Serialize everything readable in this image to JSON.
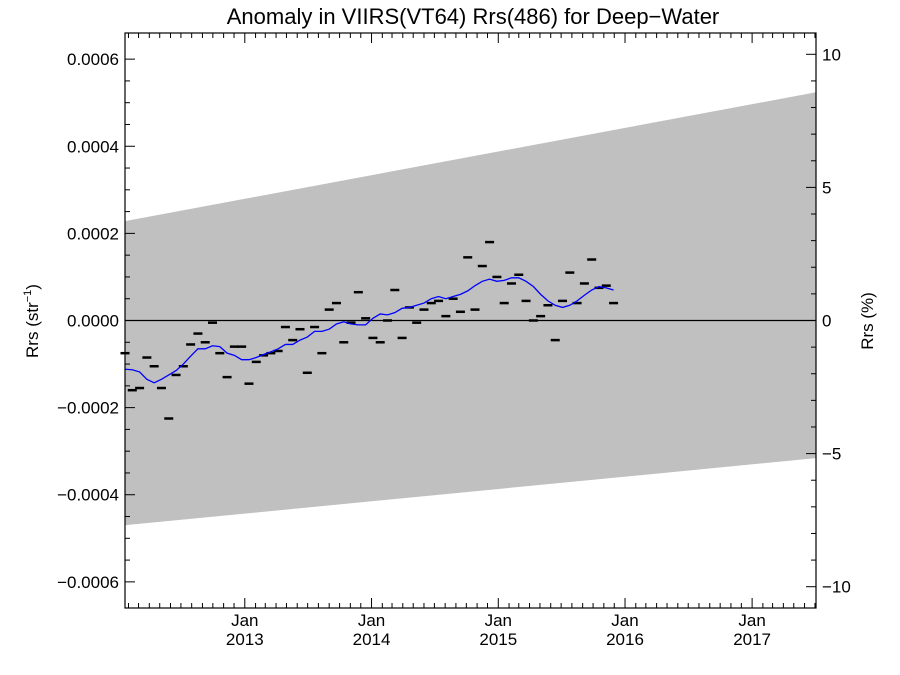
{
  "chart_data": {
    "type": "line",
    "title": "Anomaly in VIIRS(VT64) Rrs(486) for Deep−Water",
    "ylabel_left": "Rrs (str",
    "ylabel_left_sup": "−1",
    "ylabel_left_close": ")",
    "ylabel_right": "Rrs (%)",
    "xlim": [
      "2012-01-22",
      "2017-07-04"
    ],
    "ylim_left": [
      -0.00066,
      0.00066
    ],
    "ylim_right": [
      -10.8,
      10.8
    ],
    "x_ticks": [
      {
        "date": "2013-01-01",
        "month": "Jan",
        "year": "2013"
      },
      {
        "date": "2014-01-01",
        "month": "Jan",
        "year": "2014"
      },
      {
        "date": "2015-01-01",
        "month": "Jan",
        "year": "2015"
      },
      {
        "date": "2016-01-01",
        "month": "Jan",
        "year": "2016"
      },
      {
        "date": "2017-01-01",
        "month": "Jan",
        "year": "2017"
      }
    ],
    "y_ticks_left": [
      {
        "value": 0.0006,
        "label": "0.0006"
      },
      {
        "value": 0.0004,
        "label": "0.0004"
      },
      {
        "value": 0.0002,
        "label": "0.0002"
      },
      {
        "value": 0.0,
        "label": "0.0000"
      },
      {
        "value": -0.0002,
        "label": "−0.0002"
      },
      {
        "value": -0.0004,
        "label": "−0.0004"
      },
      {
        "value": -0.0006,
        "label": "−0.0006"
      }
    ],
    "y_ticks_right": [
      {
        "value": 10,
        "label": "10"
      },
      {
        "value": 5,
        "label": "5"
      },
      {
        "value": 0,
        "label": "0"
      },
      {
        "value": -5,
        "label": "−5"
      },
      {
        "value": -10,
        "label": "−10"
      }
    ],
    "band": {
      "color": "#c0c0c0",
      "upper": [
        [
          "2012-01-22",
          0.000228
        ],
        [
          "2017-07-04",
          0.000524
        ]
      ],
      "lower": [
        [
          "2012-01-22",
          -0.00047
        ],
        [
          "2017-07-04",
          -0.000316
        ]
      ]
    },
    "zero_line": {
      "value": 0.0,
      "color": "#000000"
    },
    "series": [
      {
        "style": "dash",
        "color": "#000000",
        "points": [
          [
            "2012-01-22",
            -7.5e-05
          ],
          [
            "2012-02-12",
            -0.00016
          ],
          [
            "2012-03-04",
            -0.000155
          ],
          [
            "2012-03-25",
            -8.5e-05
          ],
          [
            "2012-04-15",
            -0.000105
          ],
          [
            "2012-05-06",
            -0.000155
          ],
          [
            "2012-05-27",
            -0.000225
          ],
          [
            "2012-06-17",
            -0.000125
          ],
          [
            "2012-07-08",
            -0.000105
          ],
          [
            "2012-07-29",
            -5.5e-05
          ],
          [
            "2012-08-19",
            -3e-05
          ],
          [
            "2012-09-09",
            -5e-05
          ],
          [
            "2012-09-30",
            -5e-06
          ],
          [
            "2012-10-21",
            -7.5e-05
          ],
          [
            "2012-11-11",
            -0.00013
          ],
          [
            "2012-12-02",
            -6e-05
          ],
          [
            "2012-12-23",
            -6e-05
          ],
          [
            "2013-01-13",
            -0.000145
          ],
          [
            "2013-02-03",
            -9.5e-05
          ],
          [
            "2013-02-24",
            -8e-05
          ],
          [
            "2013-03-17",
            -7.5e-05
          ],
          [
            "2013-04-07",
            -7e-05
          ],
          [
            "2013-04-28",
            -1.5e-05
          ],
          [
            "2013-05-19",
            -4.5e-05
          ],
          [
            "2013-06-09",
            -2e-05
          ],
          [
            "2013-06-30",
            -0.00012
          ],
          [
            "2013-07-21",
            -1.5e-05
          ],
          [
            "2013-08-11",
            -7.5e-05
          ],
          [
            "2013-09-01",
            2.5e-05
          ],
          [
            "2013-09-22",
            4e-05
          ],
          [
            "2013-10-13",
            -5e-05
          ],
          [
            "2013-11-03",
            -5e-06
          ],
          [
            "2013-11-24",
            6.5e-05
          ],
          [
            "2013-12-15",
            5e-06
          ],
          [
            "2014-01-05",
            -4e-05
          ],
          [
            "2014-01-26",
            -5e-05
          ],
          [
            "2014-02-16",
            0.0
          ],
          [
            "2014-03-09",
            7e-05
          ],
          [
            "2014-03-30",
            -4e-05
          ],
          [
            "2014-04-20",
            3e-05
          ],
          [
            "2014-05-11",
            -5e-06
          ],
          [
            "2014-06-01",
            2.5e-05
          ],
          [
            "2014-06-22",
            4e-05
          ],
          [
            "2014-07-13",
            4.5e-05
          ],
          [
            "2014-08-03",
            1e-05
          ],
          [
            "2014-08-24",
            5e-05
          ],
          [
            "2014-09-14",
            2e-05
          ],
          [
            "2014-10-05",
            0.000145
          ],
          [
            "2014-10-26",
            2.5e-05
          ],
          [
            "2014-11-16",
            0.000125
          ],
          [
            "2014-12-07",
            0.00018
          ],
          [
            "2014-12-28",
            0.0001
          ],
          [
            "2015-01-18",
            4e-05
          ],
          [
            "2015-02-08",
            8.5e-05
          ],
          [
            "2015-03-01",
            0.000105
          ],
          [
            "2015-03-22",
            4.5e-05
          ],
          [
            "2015-04-12",
            0.0
          ],
          [
            "2015-05-03",
            1e-05
          ],
          [
            "2015-05-24",
            3.5e-05
          ],
          [
            "2015-06-14",
            -4.5e-05
          ],
          [
            "2015-07-05",
            4.5e-05
          ],
          [
            "2015-07-26",
            0.00011
          ],
          [
            "2015-08-16",
            4e-05
          ],
          [
            "2015-09-06",
            8.5e-05
          ],
          [
            "2015-09-27",
            0.00014
          ],
          [
            "2015-10-18",
            7.5e-05
          ],
          [
            "2015-11-08",
            8e-05
          ],
          [
            "2015-11-29",
            4e-05
          ]
        ]
      },
      {
        "style": "line",
        "color": "#0000ff",
        "points": [
          [
            "2012-01-22",
            -0.000112
          ],
          [
            "2012-02-12",
            -0.000113
          ],
          [
            "2012-03-04",
            -0.000118
          ],
          [
            "2012-03-25",
            -0.000135
          ],
          [
            "2012-04-15",
            -0.000143
          ],
          [
            "2012-05-06",
            -0.000135
          ],
          [
            "2012-05-27",
            -0.000125
          ],
          [
            "2012-06-17",
            -0.000115
          ],
          [
            "2012-07-08",
            -0.0001
          ],
          [
            "2012-07-29",
            -8.2e-05
          ],
          [
            "2012-08-19",
            -6.5e-05
          ],
          [
            "2012-09-09",
            -6.5e-05
          ],
          [
            "2012-09-30",
            -5.8e-05
          ],
          [
            "2012-10-21",
            -6e-05
          ],
          [
            "2012-11-11",
            -7.5e-05
          ],
          [
            "2012-12-02",
            -8e-05
          ],
          [
            "2012-12-23",
            -9e-05
          ],
          [
            "2013-01-13",
            -9e-05
          ],
          [
            "2013-02-03",
            -8.5e-05
          ],
          [
            "2013-02-24",
            -7.8e-05
          ],
          [
            "2013-03-17",
            -7.2e-05
          ],
          [
            "2013-04-07",
            -6.5e-05
          ],
          [
            "2013-04-28",
            -5.5e-05
          ],
          [
            "2013-05-19",
            -5.5e-05
          ],
          [
            "2013-06-09",
            -4.5e-05
          ],
          [
            "2013-06-30",
            -3.8e-05
          ],
          [
            "2013-07-21",
            -2.5e-05
          ],
          [
            "2013-08-11",
            -2.5e-05
          ],
          [
            "2013-09-01",
            -2e-05
          ],
          [
            "2013-09-22",
            -8e-06
          ],
          [
            "2013-10-13",
            -3e-06
          ],
          [
            "2013-11-03",
            -8e-06
          ],
          [
            "2013-11-24",
            -1e-05
          ],
          [
            "2013-12-15",
            -1e-05
          ],
          [
            "2014-01-05",
            5e-06
          ],
          [
            "2014-01-26",
            1.5e-05
          ],
          [
            "2014-02-16",
            1.3e-05
          ],
          [
            "2014-03-09",
            1.8e-05
          ],
          [
            "2014-03-30",
            2.8e-05
          ],
          [
            "2014-04-20",
            3e-05
          ],
          [
            "2014-05-11",
            3.5e-05
          ],
          [
            "2014-06-01",
            4e-05
          ],
          [
            "2014-06-22",
            5e-05
          ],
          [
            "2014-07-13",
            5.5e-05
          ],
          [
            "2014-08-03",
            5e-05
          ],
          [
            "2014-08-24",
            5.5e-05
          ],
          [
            "2014-09-14",
            6e-05
          ],
          [
            "2014-10-05",
            6.8e-05
          ],
          [
            "2014-10-26",
            8e-05
          ],
          [
            "2014-11-16",
            9e-05
          ],
          [
            "2014-12-07",
            9.5e-05
          ],
          [
            "2014-12-28",
            9e-05
          ],
          [
            "2015-01-18",
            9.2e-05
          ],
          [
            "2015-02-08",
            9.8e-05
          ],
          [
            "2015-03-01",
            9.8e-05
          ],
          [
            "2015-03-22",
            9e-05
          ],
          [
            "2015-04-12",
            7.8e-05
          ],
          [
            "2015-05-03",
            6e-05
          ],
          [
            "2015-05-24",
            4.5e-05
          ],
          [
            "2015-06-14",
            3.5e-05
          ],
          [
            "2015-07-05",
            3e-05
          ],
          [
            "2015-07-26",
            3.5e-05
          ],
          [
            "2015-08-16",
            4.5e-05
          ],
          [
            "2015-09-06",
            5.8e-05
          ],
          [
            "2015-09-27",
            7e-05
          ],
          [
            "2015-10-18",
            7.8e-05
          ],
          [
            "2015-11-08",
            7.5e-05
          ],
          [
            "2015-11-29",
            7e-05
          ]
        ]
      }
    ]
  }
}
